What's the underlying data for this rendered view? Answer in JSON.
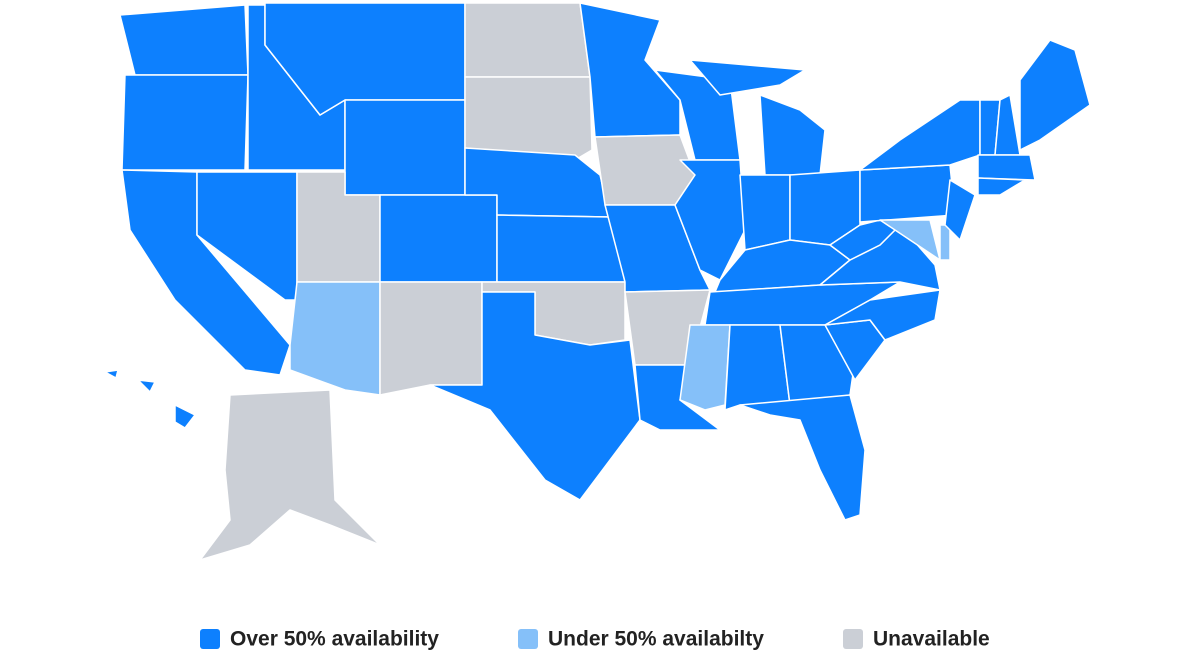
{
  "legend": [
    {
      "label": "Over 50% availability",
      "color": "#0d80fe"
    },
    {
      "label": "Under 50% availabilty",
      "color": "#85c0f9"
    },
    {
      "label": "Unavailable",
      "color": "#cbcfd6"
    }
  ]
}
